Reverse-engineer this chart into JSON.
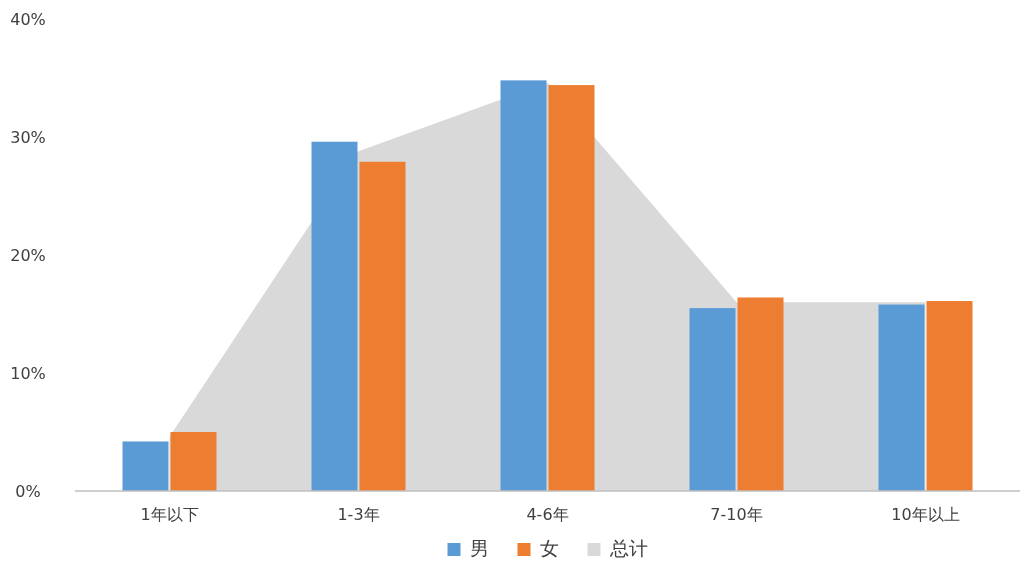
{
  "chart_data": {
    "type": "bar",
    "categories": [
      "1年以下",
      "1-3年",
      "4-6年",
      "7-10年",
      "10年以上"
    ],
    "series": [
      {
        "name": "男",
        "color": "#5b9bd5",
        "values": [
          4.2,
          29.6,
          34.8,
          15.5,
          15.8
        ]
      },
      {
        "name": "女",
        "color": "#ed7d31",
        "values": [
          5.0,
          27.9,
          34.4,
          16.4,
          16.1
        ]
      },
      {
        "name": "总计",
        "type": "area",
        "color": "#d9d9d9",
        "values": [
          4.6,
          28.8,
          34.6,
          16.0,
          16.0
        ]
      }
    ],
    "ylim": [
      0,
      40
    ],
    "yticks": [
      {
        "value": 0,
        "label": "0%"
      },
      {
        "value": 10,
        "label": "10%"
      },
      {
        "value": 20,
        "label": "20%"
      },
      {
        "value": 30,
        "label": "30%"
      },
      {
        "value": 40,
        "label": "40%"
      }
    ],
    "legend": "bottom"
  }
}
